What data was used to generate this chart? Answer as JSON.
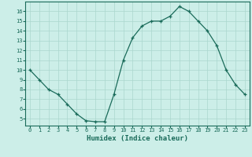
{
  "x": [
    0,
    1,
    2,
    3,
    4,
    5,
    6,
    7,
    8,
    9,
    10,
    11,
    12,
    13,
    14,
    15,
    16,
    17,
    18,
    19,
    20,
    21,
    22,
    23
  ],
  "y": [
    10,
    9,
    8,
    7.5,
    6.5,
    5.5,
    4.8,
    4.7,
    4.7,
    7.5,
    11,
    13.3,
    14.5,
    15,
    15,
    15.5,
    16.5,
    16,
    15,
    14,
    12.5,
    10,
    8.5,
    7.5
  ],
  "line_color": "#1a6b5a",
  "marker": "+",
  "bg_color": "#cceee8",
  "grid_color": "#aad6ce",
  "xlabel": "Humidex (Indice chaleur)",
  "xlim": [
    -0.5,
    23.5
  ],
  "ylim": [
    4.3,
    17.0
  ],
  "yticks": [
    5,
    6,
    7,
    8,
    9,
    10,
    11,
    12,
    13,
    14,
    15,
    16
  ],
  "xticks": [
    0,
    1,
    2,
    3,
    4,
    5,
    6,
    7,
    8,
    9,
    10,
    11,
    12,
    13,
    14,
    15,
    16,
    17,
    18,
    19,
    20,
    21,
    22,
    23
  ],
  "tick_color": "#1a6b5a",
  "label_color": "#1a6b5a",
  "spine_color": "#1a6b5a",
  "font": "monospace",
  "tick_fontsize": 5.0,
  "xlabel_fontsize": 6.5
}
